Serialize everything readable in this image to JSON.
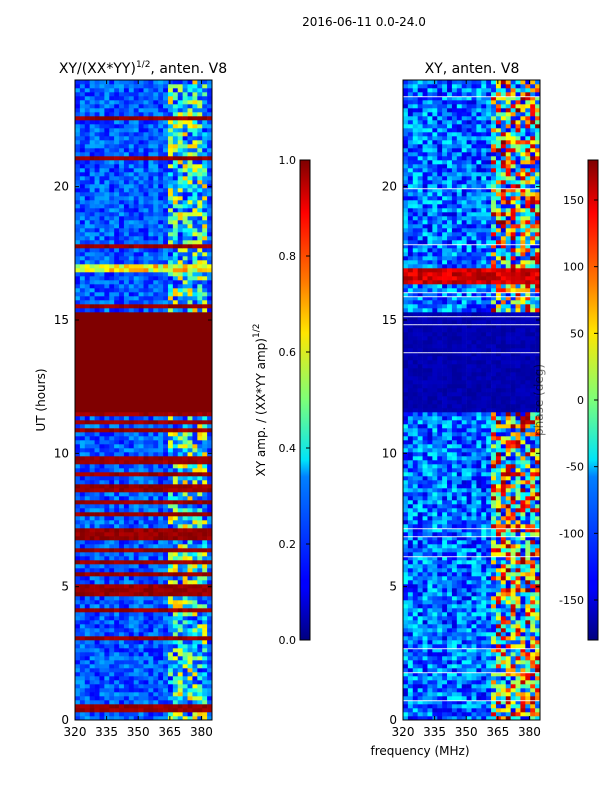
{
  "figure": {
    "suptitle": "2016-06-11 0.0-24.0",
    "xlabel": "frequency (MHz)"
  },
  "chart_data": [
    {
      "type": "heatmap",
      "title_main": "XY/(XX*YY)",
      "title_sup": "1/2",
      "title_tail": ", anten. V8",
      "ylabel": "UT (hours)",
      "xlim": [
        320,
        385
      ],
      "ylim": [
        0,
        24
      ],
      "xticks": [
        "320",
        "335",
        "350",
        "365",
        "380"
      ],
      "yticks": [
        "0",
        "5",
        "10",
        "15",
        "20"
      ],
      "colorbar": {
        "label_main": "XY amp. / (XX*YY amp)",
        "label_sup": "1/2",
        "range": [
          0.0,
          1.0
        ],
        "ticks": [
          "0.0",
          "0.2",
          "0.4",
          "0.6",
          "0.8",
          "1.0"
        ],
        "colormap": "jet"
      },
      "features": [
        {
          "name": "saturated block",
          "t_start": 11.5,
          "t_end": 15.3,
          "value": 1.0
        },
        {
          "name": "high-amplitude bands",
          "t_start": 4.0,
          "t_end": 11.5,
          "value": 0.95
        },
        {
          "name": "RFI band",
          "t_start": 16.8,
          "t_end": 17.1,
          "value": 0.5
        },
        {
          "name": "RFI channels",
          "f_start": 363,
          "f_end": 382,
          "value": 0.45
        }
      ]
    },
    {
      "type": "heatmap",
      "title": "XY, anten. V8",
      "xlim": [
        320,
        385
      ],
      "ylim": [
        0,
        24
      ],
      "xticks": [
        "320",
        "335",
        "350",
        "365",
        "380"
      ],
      "yticks": [
        "0",
        "5",
        "10",
        "15",
        "20"
      ],
      "colorbar": {
        "label": "phase (deg)",
        "range": [
          -180,
          180
        ],
        "ticks": [
          "-150",
          "-100",
          "-50",
          "0",
          "50",
          "100",
          "150"
        ],
        "colormap": "jet"
      },
      "features": [
        {
          "name": "dark block",
          "t_start": 11.5,
          "t_end": 15.3,
          "value": -170
        },
        {
          "name": "RFI band",
          "t_start": 16.3,
          "t_end": 17.0,
          "value": 170
        },
        {
          "name": "RFI channels",
          "f_start": 361,
          "f_end": 385,
          "value": 60
        }
      ]
    }
  ]
}
